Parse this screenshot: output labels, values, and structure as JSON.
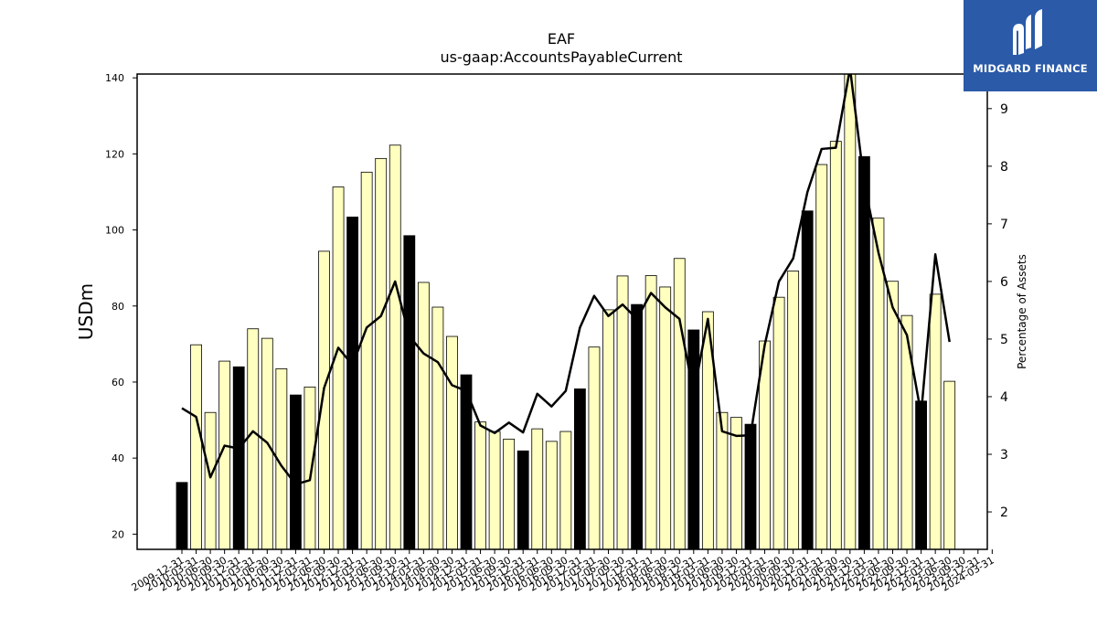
{
  "brand": {
    "name": "MIDGARD FINANCE",
    "bg_color": "#2a5aa8"
  },
  "chart_data": {
    "type": "bar",
    "title": "EAF",
    "subtitle": "us-gaap:AccountsPayableCurrent",
    "ylabel": "USDm",
    "y2label": "Percentage of Assets",
    "ylim": [
      16,
      141
    ],
    "y2lim": [
      1.35,
      9.6
    ],
    "yticks": [
      20,
      40,
      60,
      80,
      100,
      120,
      140
    ],
    "y2ticks": [
      2,
      3,
      4,
      5,
      6,
      7,
      8,
      9
    ],
    "bar_colors": {
      "year_end": "#000000",
      "quarter": "#ffffc0"
    },
    "line_color": "#000000",
    "categories": [
      "2009-12-31",
      "2010-03-31",
      "2010-06-30",
      "2010-09-30",
      "2010-12-31",
      "2011-03-31",
      "2011-06-30",
      "2011-09-30",
      "2011-12-31",
      "2012-03-31",
      "2012-06-30",
      "2012-09-30",
      "2012-12-31",
      "2013-03-31",
      "2013-06-30",
      "2013-09-30",
      "2013-12-31",
      "2014-03-31",
      "2014-06-30",
      "2014-09-30",
      "2014-12-31",
      "2015-03-31",
      "2015-06-30",
      "2015-09-30",
      "2015-12-31",
      "2016-03-31",
      "2016-06-30",
      "2016-09-30",
      "2016-12-31",
      "2017-03-31",
      "2017-06-30",
      "2017-09-30",
      "2017-12-31",
      "2018-03-31",
      "2018-06-30",
      "2018-09-30",
      "2018-12-31",
      "2019-03-31",
      "2019-06-30",
      "2019-09-30",
      "2019-12-31",
      "2020-03-31",
      "2020-06-30",
      "2020-09-30",
      "2020-12-31",
      "2021-03-31",
      "2021-06-30",
      "2021-09-30",
      "2021-12-31",
      "2022-03-31",
      "2022-06-30",
      "2022-09-30",
      "2022-12-31",
      "2023-03-31",
      "2023-06-30",
      "2023-09-30",
      "2023-12-31",
      "2024-03-31"
    ],
    "tick_labels": [
      "2009-12-31",
      "2010-03-31",
      "2010-06-30",
      "2010-09-30",
      "2010-12-31",
      "2011-03-31",
      "2011-06-30",
      "2011-09-30",
      "2011-12-31",
      "2012-03-31",
      "2012-06-30",
      "2012-09-30",
      "2012-12-31",
      "2013-03-31",
      "2013-06-30",
      "2013-09-30",
      "2013-12-31",
      "2014-03-31",
      "2014-06-30",
      "2014-09-30",
      "2014-12-31",
      "2015-03-31",
      "2015-06-30",
      "2015-09-30",
      "2015-12-31",
      "2016-03-31",
      "2016-06-30",
      "2016-09-30",
      "2016-12-31",
      "2017-03-31",
      "2017-06-30",
      "2017-09-30",
      "2017-12-31",
      "2018-03-31",
      "2018-06-30",
      "2018-09-30",
      "2018-12-31",
      "2019-03-31",
      "2019-06-30",
      "2019-09-30",
      "2019-12-31",
      "2020-03-31",
      "2020-06-30",
      "2020-09-30",
      "2020-12-31",
      "2021-03-31",
      "2021-06-30",
      "2021-09-30",
      "2021-12-31",
      "2022-03-31",
      "2022-06-30",
      "2022-09-30",
      "2022-12-31",
      "2023-03-31",
      "2023-06-30",
      "2023-09-30",
      "2023-12-31",
      "2024-03-31"
    ],
    "year_end": [
      true,
      false,
      false,
      false,
      true,
      false,
      false,
      false,
      true,
      false,
      false,
      false,
      true,
      false,
      false,
      false,
      true,
      false,
      false,
      false,
      true,
      false,
      false,
      false,
      true,
      false,
      false,
      false,
      true,
      false,
      false,
      false,
      true,
      false,
      false,
      false,
      true,
      false,
      false,
      false,
      true,
      false,
      false,
      false,
      true,
      false,
      false,
      false,
      true,
      false,
      false,
      false,
      true,
      false,
      false,
      false,
      true,
      false
    ],
    "values": [
      33.6,
      69.8,
      52.0,
      65.5,
      64.0,
      74.0,
      71.5,
      63.5,
      56.6,
      58.7,
      94.4,
      111.3,
      103.4,
      115.2,
      118.8,
      122.3,
      98.5,
      86.2,
      79.7,
      72.0,
      61.9,
      49.5,
      47.0,
      45.0,
      41.9,
      47.7,
      44.4,
      47.0,
      58.2,
      69.2,
      79.0,
      87.9,
      80.4,
      88.0,
      85.0,
      92.5,
      73.7,
      78.5,
      52.0,
      50.7,
      48.9,
      70.8,
      82.3,
      89.2,
      105.0,
      117.2,
      123.3,
      146.0,
      119.3,
      103.1,
      86.5,
      77.5,
      55.0,
      83.1,
      60.2,
      null,
      null,
      null
    ],
    "pct_assets": [
      3.8,
      3.65,
      2.6,
      3.15,
      3.1,
      3.4,
      3.2,
      2.8,
      2.48,
      2.55,
      4.15,
      4.85,
      4.55,
      5.2,
      5.4,
      6.0,
      5.05,
      4.75,
      4.6,
      4.2,
      4.1,
      3.5,
      3.37,
      3.55,
      3.38,
      4.05,
      3.83,
      4.1,
      5.2,
      5.75,
      5.4,
      5.6,
      5.35,
      5.8,
      5.55,
      5.35,
      4.05,
      5.35,
      3.4,
      3.32,
      3.33,
      4.9,
      6.0,
      6.4,
      7.55,
      8.3,
      8.32,
      9.7,
      7.7,
      6.5,
      5.55,
      5.07,
      3.7,
      6.47,
      4.95,
      null,
      null,
      null
    ]
  }
}
